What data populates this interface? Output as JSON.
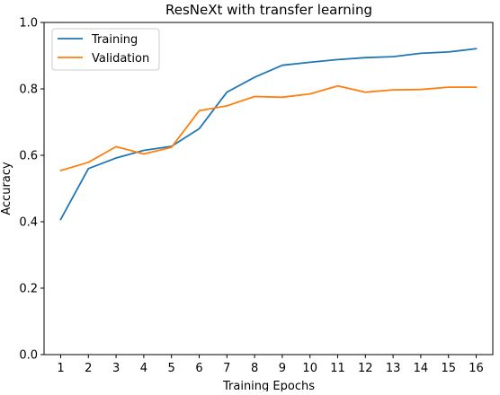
{
  "chart_data": {
    "type": "line",
    "title": "ResNeXt with transfer learning",
    "xlabel": "Training Epochs",
    "ylabel": "Accuracy",
    "x": [
      1,
      2,
      3,
      4,
      5,
      6,
      7,
      8,
      9,
      10,
      11,
      12,
      13,
      14,
      15,
      16
    ],
    "xlim": [
      0.4,
      16.6
    ],
    "ylim": [
      0.0,
      1.0
    ],
    "yticks": [
      "0.0",
      "0.2",
      "0.4",
      "0.6",
      "0.8",
      "1.0"
    ],
    "xticks": [
      "1",
      "2",
      "3",
      "4",
      "5",
      "6",
      "7",
      "8",
      "9",
      "10",
      "11",
      "12",
      "13",
      "14",
      "15",
      "16"
    ],
    "grid": false,
    "legend_position": "top-left",
    "series": [
      {
        "name": "Training",
        "color": "#1f77b4",
        "values": [
          0.407,
          0.56,
          0.592,
          0.615,
          0.627,
          0.68,
          0.79,
          0.835,
          0.871,
          0.88,
          0.888,
          0.894,
          0.897,
          0.907,
          0.911,
          0.921
        ]
      },
      {
        "name": "Validation",
        "color": "#ff7f0e",
        "values": [
          0.554,
          0.579,
          0.626,
          0.604,
          0.624,
          0.734,
          0.749,
          0.777,
          0.775,
          0.785,
          0.809,
          0.79,
          0.797,
          0.798,
          0.805,
          0.805
        ]
      }
    ]
  }
}
